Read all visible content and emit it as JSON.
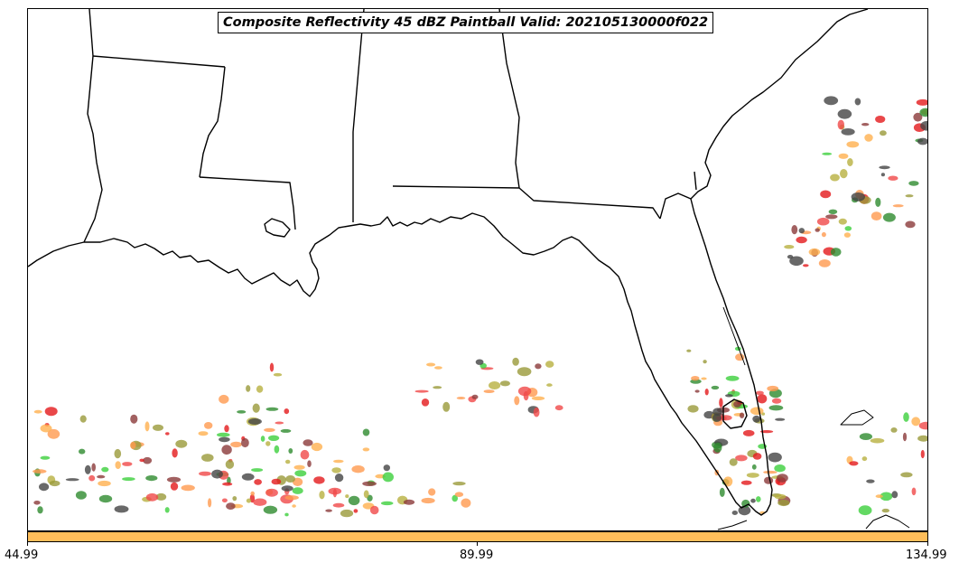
{
  "title": "Composite Reflectivity 45 dBZ Paintball Valid: 202105130000f022",
  "colorbar": {
    "color": "#ffbe5a",
    "ticks": [
      "44.99",
      "89.99",
      "134.99"
    ]
  },
  "paintball_colors": [
    "#e3191c",
    "#ff9a4f",
    "#ffb04f",
    "#3ccf3c",
    "#2e8b2e",
    "#9a9a3a",
    "#b8b040",
    "#8b3a3a",
    "#444444",
    "#f04848"
  ],
  "map": {
    "features": [
      "state-boundaries",
      "coastline",
      "florida-peninsula",
      "gulf-coast"
    ]
  }
}
